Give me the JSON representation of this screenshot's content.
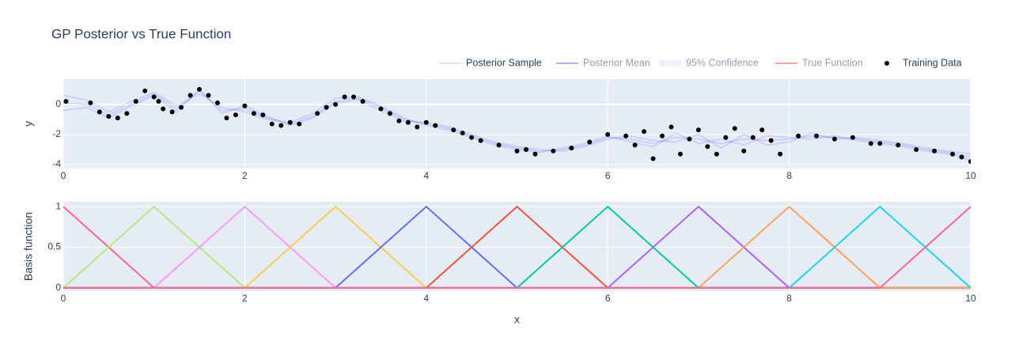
{
  "chart_data": [
    {
      "type": "line",
      "title": "GP Posterior vs True Function",
      "y_label": "y",
      "xlim": [
        0,
        10
      ],
      "xticks": [
        0,
        2,
        4,
        6,
        8,
        10
      ],
      "ylim": [
        -4.26,
        1.68
      ],
      "yticks": [
        -4,
        -2,
        0
      ],
      "grid": true,
      "legend": "top-right",
      "series": [
        {
          "name": "Posterior Sample",
          "color": "rgba(99,110,250,0.2)",
          "x": [
            0,
            0.25,
            0.5,
            0.75,
            1,
            1.25,
            1.5,
            1.75,
            2,
            2.25,
            2.5,
            2.75,
            3,
            3.25,
            3.5,
            3.75,
            4,
            4.25,
            4.5,
            4.75,
            5,
            5.25,
            5.5,
            5.75,
            6,
            6.25,
            6.5,
            6.75,
            7,
            7.25,
            7.5,
            7.75,
            8,
            8.25,
            8.5,
            8.75,
            9,
            9.25,
            9.5,
            9.75,
            10
          ],
          "samples": [
            [
              0.1,
              0,
              -0.7,
              0,
              0.7,
              -0.3,
              0.9,
              -0.4,
              -0.3,
              -0.9,
              -1.3,
              -0.8,
              0.2,
              0.4,
              -0.2,
              -1,
              -1.3,
              -1.6,
              -2.1,
              -2.6,
              -2.9,
              -3.1,
              -3,
              -2.7,
              -2.2,
              -2.3,
              -2.6,
              -2.2,
              -2.3,
              -2.6,
              -2.3,
              -2.4,
              -2.3,
              -2.1,
              -2.2,
              -2.3,
              -2.5,
              -2.7,
              -3,
              -3.2,
              -3.5
            ],
            [
              0.6,
              0.3,
              -0.5,
              0.2,
              0.8,
              -0.1,
              0.7,
              -0.2,
              -0.5,
              -1,
              -1.2,
              -0.6,
              0.4,
              0.5,
              -0.1,
              -0.9,
              -1.4,
              -1.7,
              -2.2,
              -2.7,
              -3,
              -3.2,
              -2.9,
              -2.6,
              -2.1,
              -2.5,
              -2.8,
              -1.9,
              -2.6,
              -2.3,
              -2.7,
              -2.1,
              -2.2,
              -2.3,
              -2.1,
              -2.4,
              -2.6,
              -2.8,
              -3.1,
              -3.3,
              -3.7
            ],
            [
              -0.4,
              -0.2,
              -0.9,
              -0.1,
              0.6,
              -0.5,
              1,
              -0.6,
              -0.1,
              -0.8,
              -1.4,
              -0.9,
              0.1,
              0.3,
              -0.4,
              -1.1,
              -1.2,
              -1.5,
              -2,
              -2.5,
              -2.8,
              -3,
              -3.1,
              -2.8,
              -2.3,
              -2.1,
              -2.4,
              -2.5,
              -2,
              -2.9,
              -2,
              -2.7,
              -2.5,
              -1.9,
              -2.3,
              -2.2,
              -2.4,
              -2.6,
              -2.9,
              -3.1,
              -3.3
            ]
          ]
        },
        {
          "name": "Posterior Mean",
          "color": "#636efa",
          "visible": false
        },
        {
          "name": "95% Confidence",
          "color": "rgba(99,110,250,0.2)",
          "band": true,
          "visible": false
        },
        {
          "name": "True Function",
          "color": "#ef553b",
          "visible": false
        },
        {
          "name": "Training Data",
          "color": "#000000",
          "markers": true,
          "x": [
            0.03,
            0.3,
            0.4,
            0.5,
            0.6,
            0.7,
            0.8,
            0.9,
            1.0,
            1.05,
            1.1,
            1.2,
            1.3,
            1.4,
            1.5,
            1.6,
            1.7,
            1.8,
            1.9,
            2.0,
            2.1,
            2.2,
            2.3,
            2.4,
            2.5,
            2.6,
            2.8,
            2.9,
            3.0,
            3.1,
            3.2,
            3.3,
            3.5,
            3.6,
            3.7,
            3.8,
            3.9,
            4.0,
            4.1,
            4.3,
            4.4,
            4.5,
            4.6,
            4.8,
            5.0,
            5.1,
            5.2,
            5.4,
            5.6,
            5.8,
            6.0,
            6.2,
            6.3,
            6.4,
            6.5,
            6.6,
            6.7,
            6.8,
            6.9,
            7.0,
            7.1,
            7.2,
            7.3,
            7.4,
            7.5,
            7.6,
            7.7,
            7.8,
            7.9,
            8.1,
            8.3,
            8.5,
            8.7,
            8.9,
            9.0,
            9.2,
            9.4,
            9.6,
            9.8,
            9.9,
            10.0
          ],
          "values": [
            0.2,
            0.1,
            -0.5,
            -0.8,
            -0.9,
            -0.6,
            0.2,
            0.9,
            0.5,
            0.2,
            -0.3,
            -0.5,
            -0.2,
            0.6,
            1.0,
            0.6,
            0.1,
            -0.9,
            -0.7,
            -0.1,
            -0.6,
            -0.7,
            -1.3,
            -1.4,
            -1.2,
            -1.3,
            -0.6,
            -0.2,
            0.0,
            0.5,
            0.5,
            0.2,
            -0.3,
            -0.6,
            -1.1,
            -1.2,
            -1.5,
            -1.2,
            -1.4,
            -1.7,
            -1.9,
            -2.2,
            -2.4,
            -2.7,
            -3.1,
            -3.0,
            -3.3,
            -3.1,
            -2.9,
            -2.5,
            -2.0,
            -2.1,
            -2.7,
            -1.8,
            -3.6,
            -2.1,
            -1.5,
            -3.3,
            -2.3,
            -1.7,
            -2.8,
            -3.3,
            -2.2,
            -1.6,
            -3.1,
            -2.2,
            -1.7,
            -2.4,
            -3.3,
            -2.1,
            -2.1,
            -2.3,
            -2.2,
            -2.6,
            -2.6,
            -2.7,
            -3.0,
            -3.1,
            -3.3,
            -3.5,
            -3.8
          ]
        }
      ]
    },
    {
      "type": "line",
      "y_label": "Basis function",
      "x_label": "x",
      "xlim": [
        0,
        10
      ],
      "xticks": [
        0,
        2,
        4,
        6,
        8,
        10
      ],
      "ylim": [
        -0.04,
        1.06
      ],
      "yticks": [
        0,
        0.5,
        1
      ],
      "grid": true,
      "x": [
        0,
        1,
        2,
        3,
        4,
        5,
        6,
        7,
        8,
        9,
        10
      ],
      "series": [
        {
          "color": "#ff6692",
          "values": [
            1,
            0,
            0,
            0,
            0,
            0,
            0,
            0,
            0,
            0,
            0
          ]
        },
        {
          "color": "#b6e880",
          "values": [
            0,
            1,
            0,
            0,
            0,
            0,
            0,
            0,
            0,
            0,
            0
          ]
        },
        {
          "color": "#ff97ff",
          "values": [
            0,
            0,
            1,
            0,
            0,
            0,
            0,
            0,
            0,
            0,
            0
          ]
        },
        {
          "color": "#fecb52",
          "values": [
            0,
            0,
            0,
            1,
            0,
            0,
            0,
            0,
            0,
            0,
            0
          ]
        },
        {
          "color": "#636efa",
          "values": [
            0,
            0,
            0,
            0,
            1,
            0,
            0,
            0,
            0,
            0,
            0
          ]
        },
        {
          "color": "#ef553b",
          "values": [
            0,
            0,
            0,
            0,
            0,
            1,
            0,
            0,
            0,
            0,
            0
          ]
        },
        {
          "color": "#00cc96",
          "values": [
            0,
            0,
            0,
            0,
            0,
            0,
            1,
            0,
            0,
            0,
            0
          ]
        },
        {
          "color": "#ab63fa",
          "values": [
            0,
            0,
            0,
            0,
            0,
            0,
            0,
            1,
            0,
            0,
            0
          ]
        },
        {
          "color": "#ffa15a",
          "values": [
            0,
            0,
            0,
            0,
            0,
            0,
            0,
            0,
            1,
            0,
            0
          ]
        },
        {
          "color": "#19d3f3",
          "values": [
            0,
            0,
            0,
            0,
            0,
            0,
            0,
            0,
            0,
            1,
            0
          ]
        },
        {
          "color": "#ff6692",
          "values": [
            0,
            0,
            0,
            0,
            0,
            0,
            0,
            0,
            0,
            0,
            1
          ]
        }
      ]
    }
  ]
}
